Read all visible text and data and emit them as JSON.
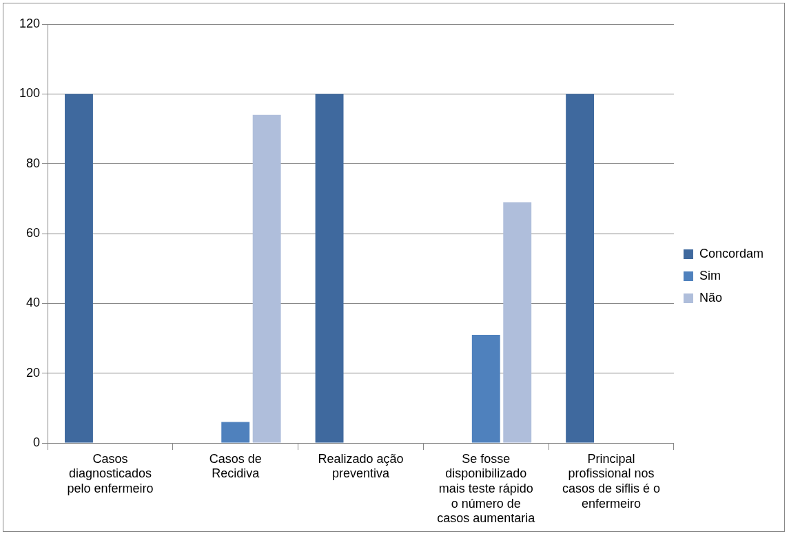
{
  "chart_data": {
    "type": "bar",
    "categories": [
      "Casos diagnosticados pelo enfermeiro",
      "Casos de Recidiva",
      "Realizado ação preventiva",
      "Se fosse disponibilizado mais teste rápido o número de casos aumentaria",
      "Principal profissional nos casos de siflis é o enfermeiro"
    ],
    "series": [
      {
        "name": "Concordam",
        "color": "#3f699e",
        "values": [
          100,
          null,
          100,
          null,
          100
        ]
      },
      {
        "name": "Sim",
        "color": "#4f81bd",
        "values": [
          null,
          6,
          null,
          31,
          null
        ]
      },
      {
        "name": "Não",
        "color": "#afbedb",
        "values": [
          null,
          94,
          null,
          69,
          null
        ]
      }
    ],
    "ylim": [
      0,
      120
    ],
    "yticks": [
      0,
      20,
      40,
      60,
      80,
      100,
      120
    ],
    "grid": "y",
    "legend": "right"
  }
}
